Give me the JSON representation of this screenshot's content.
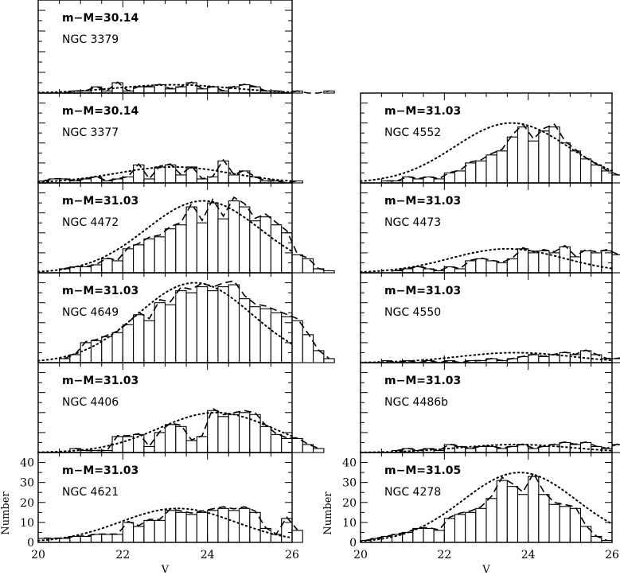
{
  "chart_data": {
    "type": "bar",
    "xlabel": "V",
    "ylabel": "Number",
    "xlim": [
      20,
      26
    ],
    "ylim": [
      0,
      45
    ],
    "x_ticks": [
      "20",
      "22",
      "24",
      "26"
    ],
    "y_ticks": [
      "0",
      "10",
      "20",
      "30",
      "40"
    ],
    "bin_width": 0.25,
    "panels": [
      {
        "column": "left",
        "row": 0,
        "distance_label": "m−M=30.14",
        "galaxy": "NGC 3379",
        "bins_start": 20.5,
        "values": [
          0,
          1,
          1,
          3,
          1,
          5,
          1,
          3,
          3,
          4,
          2,
          3,
          5,
          2,
          3,
          1,
          3,
          4,
          3,
          1,
          1,
          0,
          1,
          0,
          0,
          1
        ],
        "gclf_peak": 23.2,
        "gclf_sigma": 1.35,
        "gclf_amp": 4
      },
      {
        "column": "left",
        "row": 1,
        "distance_label": "m−M=30.14",
        "galaxy": "NGC 3377",
        "bins_start": 20.0,
        "values": [
          1,
          2,
          2,
          1,
          2,
          3,
          1,
          2,
          3,
          9,
          2,
          8,
          9,
          4,
          8,
          2,
          3,
          11,
          4,
          6,
          3,
          1,
          1,
          0,
          1
        ],
        "gclf_peak": 23.2,
        "gclf_sigma": 1.35,
        "gclf_amp": 8
      },
      {
        "column": "left",
        "row": 2,
        "distance_label": "m−M=31.03",
        "galaxy": "NGC 4472",
        "bins_start": 20.5,
        "values": [
          2,
          3,
          3,
          4,
          7,
          6,
          12,
          14,
          17,
          18,
          22,
          24,
          33,
          25,
          35,
          27,
          36,
          33,
          26,
          28,
          24,
          20,
          9,
          7,
          2,
          1
        ],
        "gclf_peak": 23.9,
        "gclf_sigma": 1.35,
        "gclf_amp": 36
      },
      {
        "column": "left",
        "row": 3,
        "distance_label": "m−M=31.03",
        "galaxy": "NGC 4649",
        "bins_start": 20.5,
        "values": [
          2,
          4,
          10,
          11,
          13,
          15,
          19,
          24,
          21,
          30,
          29,
          36,
          35,
          38,
          36,
          38,
          39,
          32,
          28,
          27,
          25,
          23,
          21,
          14,
          6,
          2
        ],
        "gclf_peak": 23.7,
        "gclf_sigma": 1.35,
        "gclf_amp": 40
      },
      {
        "column": "left",
        "row": 4,
        "distance_label": "m−M=31.03",
        "galaxy": "NGC 4406",
        "bins_start": 20.75,
        "values": [
          2,
          1,
          1,
          1,
          8,
          8,
          9,
          3,
          10,
          14,
          13,
          6,
          8,
          21,
          18,
          19,
          20,
          19,
          13,
          9,
          7,
          7,
          4,
          2
        ],
        "gclf_peak": 24.2,
        "gclf_sigma": 1.35,
        "gclf_amp": 20
      },
      {
        "column": "left",
        "row": 5,
        "distance_label": "m−M=31.03",
        "galaxy": "NGC 4621",
        "bins_start": 20.0,
        "values": [
          2,
          2,
          2,
          3,
          3,
          4,
          4,
          4,
          10,
          8,
          11,
          11,
          16,
          15,
          14,
          15,
          16,
          17,
          16,
          17,
          15,
          7,
          4,
          12,
          6
        ],
        "gclf_peak": 23.3,
        "gclf_sigma": 1.35,
        "gclf_amp": 17
      },
      {
        "column": "right",
        "row": 1,
        "distance_label": "m−M=31.03",
        "galaxy": "NGC 4552",
        "bins_start": 20.5,
        "values": [
          1,
          1,
          3,
          2,
          3,
          2,
          5,
          6,
          10,
          11,
          14,
          16,
          23,
          28,
          21,
          26,
          28,
          20,
          16,
          12,
          9,
          6,
          4,
          2
        ],
        "gclf_peak": 23.6,
        "gclf_sigma": 1.35,
        "gclf_amp": 30
      },
      {
        "column": "right",
        "row": 2,
        "distance_label": "m−M=31.03",
        "galaxy": "NGC 4473",
        "bins_start": 20.75,
        "values": [
          1,
          2,
          3,
          2,
          1,
          3,
          2,
          6,
          7,
          6,
          5,
          7,
          12,
          10,
          11,
          10,
          13,
          8,
          11,
          10,
          11,
          9,
          3,
          2,
          1
        ],
        "gclf_peak": 23.5,
        "gclf_sigma": 1.35,
        "gclf_amp": 12
      },
      {
        "column": "right",
        "row": 3,
        "distance_label": "m−M=31.03",
        "galaxy": "NGC 4550",
        "bins_start": 20.5,
        "values": [
          1,
          0,
          1,
          0,
          1,
          0,
          1,
          0,
          1,
          1,
          2,
          1,
          2,
          3,
          4,
          3,
          4,
          5,
          4,
          6,
          4,
          2,
          2,
          3,
          3
        ],
        "gclf_peak": 23.7,
        "gclf_sigma": 1.35,
        "gclf_amp": 5
      },
      {
        "column": "right",
        "row": 4,
        "distance_label": "m−M=31.03",
        "galaxy": "NGC 4486b",
        "bins_start": 20.75,
        "values": [
          1,
          2,
          1,
          2,
          1,
          4,
          3,
          2,
          3,
          3,
          2,
          3,
          4,
          2,
          3,
          4,
          5,
          4,
          5,
          3,
          2,
          4,
          2,
          1,
          1
        ],
        "gclf_peak": 23.7,
        "gclf_sigma": 1.35,
        "gclf_amp": 4
      },
      {
        "column": "right",
        "row": 5,
        "distance_label": "m−M=31.05",
        "galaxy": "NGC 4278",
        "bins_start": 20.0,
        "values": [
          1,
          2,
          3,
          4,
          5,
          7,
          7,
          6,
          12,
          14,
          15,
          17,
          22,
          31,
          28,
          24,
          33,
          24,
          19,
          18,
          17,
          8,
          3,
          1
        ],
        "gclf_peak": 23.8,
        "gclf_sigma": 1.35,
        "gclf_amp": 35
      }
    ]
  }
}
